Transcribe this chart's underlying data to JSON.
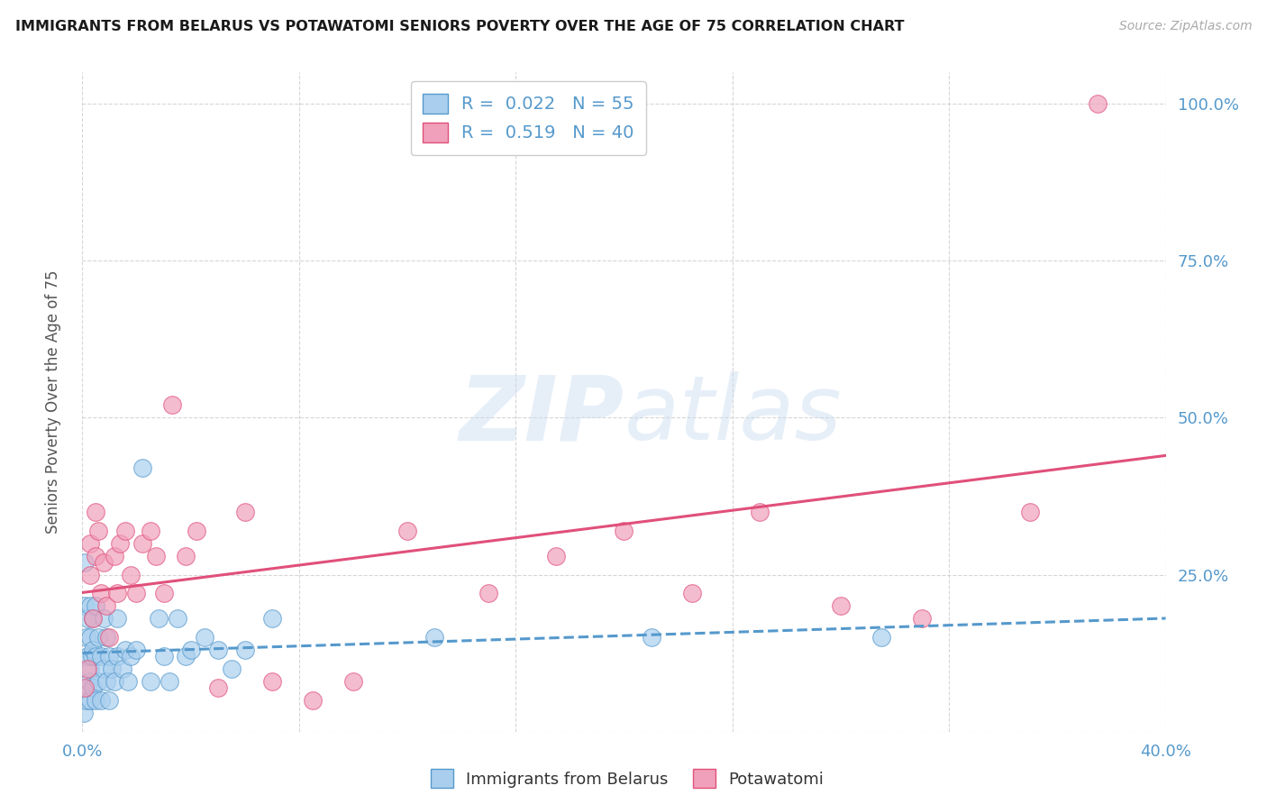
{
  "title": "IMMIGRANTS FROM BELARUS VS POTAWATOMI SENIORS POVERTY OVER THE AGE OF 75 CORRELATION CHART",
  "source": "Source: ZipAtlas.com",
  "ylabel": "Seniors Poverty Over the Age of 75",
  "series1_R": "0.022",
  "series1_N": "55",
  "series2_R": "0.519",
  "series2_N": "40",
  "color_blue": "#aacfee",
  "color_pink": "#f0a0bb",
  "color_blue_line": "#5599cc",
  "color_pink_line": "#e0507a",
  "color_axis": "#5599cc",
  "legend_series1_label": "Immigrants from Belarus",
  "legend_series2_label": "Potawatomi",
  "xlim": [
    0,
    0.4
  ],
  "ylim": [
    0,
    1.05
  ],
  "xtick_vals": [
    0.0,
    0.08,
    0.16,
    0.24,
    0.32,
    0.4
  ],
  "ytick_vals": [
    0.0,
    0.25,
    0.5,
    0.75,
    1.0
  ],
  "ytick_labels_right": [
    "",
    "25.0%",
    "50.0%",
    "75.0%",
    "100.0%"
  ],
  "series1_x": [
    0.0005,
    0.001,
    0.001,
    0.0015,
    0.0015,
    0.002,
    0.002,
    0.002,
    0.0025,
    0.003,
    0.003,
    0.003,
    0.003,
    0.0035,
    0.004,
    0.004,
    0.004,
    0.005,
    0.005,
    0.005,
    0.006,
    0.006,
    0.007,
    0.007,
    0.008,
    0.008,
    0.009,
    0.009,
    0.01,
    0.01,
    0.011,
    0.012,
    0.013,
    0.013,
    0.015,
    0.016,
    0.017,
    0.018,
    0.02,
    0.022,
    0.025,
    0.028,
    0.03,
    0.032,
    0.035,
    0.038,
    0.04,
    0.045,
    0.05,
    0.055,
    0.06,
    0.07,
    0.13,
    0.21,
    0.295
  ],
  "series1_y": [
    0.03,
    0.2,
    0.27,
    0.05,
    0.15,
    0.07,
    0.12,
    0.18,
    0.08,
    0.05,
    0.1,
    0.15,
    0.2,
    0.12,
    0.07,
    0.13,
    0.18,
    0.05,
    0.12,
    0.2,
    0.08,
    0.15,
    0.05,
    0.12,
    0.1,
    0.18,
    0.08,
    0.15,
    0.05,
    0.12,
    0.1,
    0.08,
    0.12,
    0.18,
    0.1,
    0.13,
    0.08,
    0.12,
    0.13,
    0.42,
    0.08,
    0.18,
    0.12,
    0.08,
    0.18,
    0.12,
    0.13,
    0.15,
    0.13,
    0.1,
    0.13,
    0.18,
    0.15,
    0.15,
    0.15
  ],
  "series2_x": [
    0.001,
    0.002,
    0.003,
    0.003,
    0.004,
    0.005,
    0.005,
    0.006,
    0.007,
    0.008,
    0.009,
    0.01,
    0.012,
    0.013,
    0.014,
    0.016,
    0.018,
    0.02,
    0.022,
    0.025,
    0.027,
    0.03,
    0.033,
    0.038,
    0.042,
    0.05,
    0.06,
    0.07,
    0.085,
    0.1,
    0.12,
    0.15,
    0.175,
    0.2,
    0.225,
    0.25,
    0.28,
    0.31,
    0.35,
    0.375
  ],
  "series2_y": [
    0.07,
    0.1,
    0.3,
    0.25,
    0.18,
    0.35,
    0.28,
    0.32,
    0.22,
    0.27,
    0.2,
    0.15,
    0.28,
    0.22,
    0.3,
    0.32,
    0.25,
    0.22,
    0.3,
    0.32,
    0.28,
    0.22,
    0.52,
    0.28,
    0.32,
    0.07,
    0.35,
    0.08,
    0.05,
    0.08,
    0.32,
    0.22,
    0.28,
    0.32,
    0.22,
    0.35,
    0.2,
    0.18,
    0.35,
    1.0
  ]
}
